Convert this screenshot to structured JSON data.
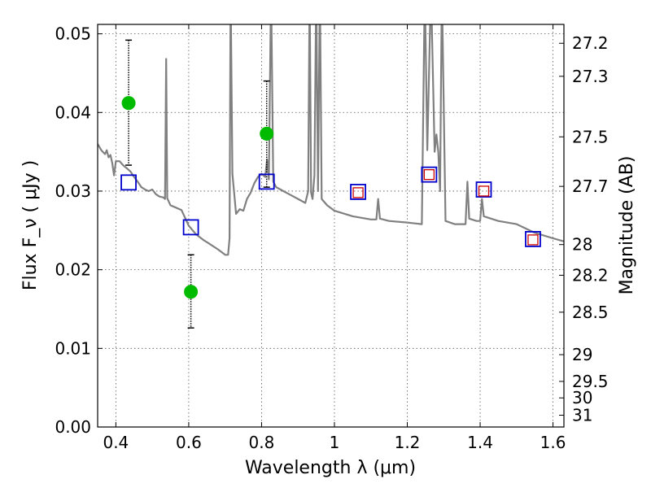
{
  "chart_data": {
    "type": "scatter",
    "xlabel": "Wavelength  λ (μm)",
    "ylabel": "Flux  F_ν  ( μJy )",
    "ylabel_right": "Magnitude (AB)",
    "xlim": [
      0.35,
      1.63
    ],
    "ylim": [
      0.0,
      0.0512
    ],
    "grid": true,
    "x_ticks": [
      0.4,
      0.6,
      0.8,
      1.0,
      1.2,
      1.4,
      1.6
    ],
    "x_tick_labels": [
      "0.4",
      "0.6",
      "0.8",
      "1",
      "1.2",
      "1.4",
      "1.6"
    ],
    "y_ticks": [
      0.0,
      0.01,
      0.02,
      0.03,
      0.04,
      0.05
    ],
    "y_tick_labels": [
      "0.00",
      "0.01",
      "0.02",
      "0.03",
      "0.04",
      "0.05"
    ],
    "right_ticks": [
      {
        "flux": 0.0488,
        "label": "27.2"
      },
      {
        "flux": 0.0446,
        "label": "27.3"
      },
      {
        "flux": 0.0369,
        "label": "27.5"
      },
      {
        "flux": 0.0306,
        "label": "27.7"
      },
      {
        "flux": 0.0232,
        "label": "28"
      },
      {
        "flux": 0.0193,
        "label": "28.2"
      },
      {
        "flux": 0.0146,
        "label": "28.5"
      },
      {
        "flux": 0.0092,
        "label": "29"
      },
      {
        "flux": 0.0058,
        "label": "29.5"
      },
      {
        "flux": 0.0037,
        "label": "30"
      },
      {
        "flux": 0.0015,
        "label": "31"
      }
    ],
    "series": [
      {
        "kind": "line",
        "color": "#808080",
        "points": [
          [
            0.35,
            0.036
          ],
          [
            0.36,
            0.0352
          ],
          [
            0.37,
            0.0347
          ],
          [
            0.375,
            0.0352
          ],
          [
            0.38,
            0.0343
          ],
          [
            0.385,
            0.0346
          ],
          [
            0.39,
            0.0336
          ],
          [
            0.395,
            0.032
          ],
          [
            0.4,
            0.0338
          ],
          [
            0.41,
            0.0338
          ],
          [
            0.42,
            0.0333
          ],
          [
            0.43,
            0.0329
          ],
          [
            0.44,
            0.0325
          ],
          [
            0.45,
            0.0318
          ],
          [
            0.46,
            0.0312
          ],
          [
            0.47,
            0.0305
          ],
          [
            0.48,
            0.0302
          ],
          [
            0.49,
            0.03
          ],
          [
            0.5,
            0.0302
          ],
          [
            0.51,
            0.0296
          ],
          [
            0.52,
            0.0293
          ],
          [
            0.53,
            0.0292
          ],
          [
            0.535,
            0.029
          ],
          [
            0.538,
            0.0468
          ],
          [
            0.541,
            0.0291
          ],
          [
            0.55,
            0.0282
          ],
          [
            0.56,
            0.028
          ],
          [
            0.58,
            0.0276
          ],
          [
            0.6,
            0.0256
          ],
          [
            0.62,
            0.0245
          ],
          [
            0.64,
            0.0238
          ],
          [
            0.66,
            0.0232
          ],
          [
            0.68,
            0.0226
          ],
          [
            0.7,
            0.0219
          ],
          [
            0.708,
            0.0219
          ],
          [
            0.712,
            0.024
          ],
          [
            0.715,
            0.056
          ],
          [
            0.72,
            0.0322
          ],
          [
            0.73,
            0.0271
          ],
          [
            0.74,
            0.0277
          ],
          [
            0.75,
            0.0275
          ],
          [
            0.76,
            0.029
          ],
          [
            0.77,
            0.0298
          ],
          [
            0.78,
            0.031
          ],
          [
            0.79,
            0.0318
          ],
          [
            0.8,
            0.0322
          ],
          [
            0.81,
            0.0318
          ],
          [
            0.815,
            0.034
          ],
          [
            0.82,
            0.0315
          ],
          [
            0.826,
            0.056
          ],
          [
            0.832,
            0.0312
          ],
          [
            0.84,
            0.0305
          ],
          [
            0.86,
            0.03
          ],
          [
            0.88,
            0.0295
          ],
          [
            0.9,
            0.029
          ],
          [
            0.92,
            0.0285
          ],
          [
            0.928,
            0.03
          ],
          [
            0.932,
            0.056
          ],
          [
            0.936,
            0.0298
          ],
          [
            0.94,
            0.029
          ],
          [
            0.945,
            0.032
          ],
          [
            0.95,
            0.056
          ],
          [
            0.955,
            0.03
          ],
          [
            0.96,
            0.056
          ],
          [
            0.965,
            0.029
          ],
          [
            0.98,
            0.0282
          ],
          [
            1.0,
            0.0275
          ],
          [
            1.05,
            0.0268
          ],
          [
            1.1,
            0.0264
          ],
          [
            1.115,
            0.0264
          ],
          [
            1.12,
            0.029
          ],
          [
            1.125,
            0.0265
          ],
          [
            1.15,
            0.0262
          ],
          [
            1.2,
            0.026
          ],
          [
            1.24,
            0.0258
          ],
          [
            1.248,
            0.056
          ],
          [
            1.255,
            0.0352
          ],
          [
            1.265,
            0.056
          ],
          [
            1.275,
            0.035
          ],
          [
            1.28,
            0.0372
          ],
          [
            1.285,
            0.035
          ],
          [
            1.29,
            0.03
          ],
          [
            1.295,
            0.056
          ],
          [
            1.305,
            0.0262
          ],
          [
            1.33,
            0.0258
          ],
          [
            1.36,
            0.0258
          ],
          [
            1.365,
            0.0312
          ],
          [
            1.37,
            0.0265
          ],
          [
            1.39,
            0.0262
          ],
          [
            1.4,
            0.0262
          ],
          [
            1.405,
            0.029
          ],
          [
            1.41,
            0.0268
          ],
          [
            1.45,
            0.0262
          ],
          [
            1.5,
            0.0258
          ],
          [
            1.55,
            0.0247
          ],
          [
            1.6,
            0.024
          ],
          [
            1.63,
            0.0236
          ]
        ]
      },
      {
        "kind": "errorbar",
        "name": "",
        "color": "#00bb00",
        "points": [
          {
            "x": 0.435,
            "y": 0.0412,
            "ylo": 0.0333,
            "yhi": 0.0492
          },
          {
            "x": 0.606,
            "y": 0.0172,
            "ylo": 0.0126,
            "yhi": 0.0219
          },
          {
            "x": 0.814,
            "y": 0.0373,
            "ylo": 0.0305,
            "yhi": 0.044
          }
        ]
      },
      {
        "kind": "open-square",
        "name": "",
        "color": "#0000cc",
        "points": [
          [
            0.435,
            0.0311
          ],
          [
            0.606,
            0.0254
          ],
          [
            0.814,
            0.0312
          ],
          [
            1.065,
            0.0299
          ],
          [
            1.26,
            0.0321
          ],
          [
            1.41,
            0.0302
          ],
          [
            1.545,
            0.0239
          ]
        ]
      },
      {
        "kind": "open-square-small",
        "name": "",
        "color": "#cc0000",
        "points": [
          [
            1.065,
            0.0298
          ],
          [
            1.26,
            0.0321
          ],
          [
            1.41,
            0.03
          ],
          [
            1.545,
            0.0238
          ]
        ]
      }
    ]
  }
}
